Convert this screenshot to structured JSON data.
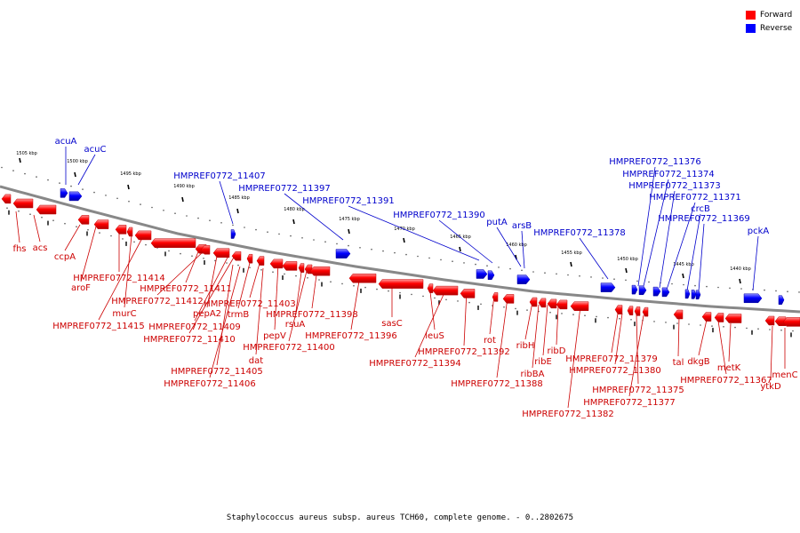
{
  "legend": {
    "forward_label": "Forward",
    "reverse_label": "Reverse",
    "forward_color": "#ff0000",
    "reverse_color": "#0000ff"
  },
  "caption": "Staphylococcus aureus subsp. aureus TCH60, complete genome. - 0..2802675",
  "backbone_color": "#888888",
  "label_forward_color": "#cc0000",
  "label_reverse_color": "#0000cc",
  "ticks": [
    "1505 kbp",
    "1500 kbp",
    "1495 kbp",
    "1490 kbp",
    "1485 kbp",
    "1480 kbp",
    "1475 kbp",
    "1470 kbp",
    "1465 kbp",
    "1460 kbp",
    "1455 kbp",
    "1450 kbp",
    "1445 kbp",
    "1440 kbp"
  ],
  "reverse_genes": [
    "acuA",
    "acuC",
    "HMPREF0772_11407",
    "HMPREF0772_11397",
    "HMPREF0772_11391",
    "HMPREF0772_11390",
    "putA",
    "arsB",
    "HMPREF0772_11378",
    "HMPREF0772_11376",
    "HMPREF0772_11374",
    "HMPREF0772_11373",
    "HMPREF0772_11371",
    "crcB",
    "HMPREF0772_11369",
    "pckA"
  ],
  "forward_genes": [
    "fhs",
    "acs",
    "ccpA",
    "aroF",
    "HMPREF0772_11414",
    "murC",
    "HMPREF0772_11415",
    "HMPREF0772_11411",
    "HMPREF0772_11412",
    "pepA2",
    "HMPREF0772_11409",
    "HMPREF0772_11410",
    "trmB",
    "HMPREF0772_11403",
    "HMPREF0772_11405",
    "HMPREF0772_11406",
    "pepV",
    "dat",
    "rsuA",
    "HMPREF0772_11400",
    "HMPREF0772_11398",
    "HMPREF0772_11396",
    "sasC",
    "leuS",
    "HMPREF0772_11394",
    "HMPREF0772_11392",
    "rot",
    "HMPREF0772_11388",
    "ribH",
    "ribBA",
    "ribE",
    "ribD",
    "HMPREF0772_11382",
    "HMPREF0772_11379",
    "HMPREF0772_11380",
    "HMPREF0772_11375",
    "HMPREF0772_11377",
    "tal",
    "dkgB",
    "HMPREF0772_11367",
    "metK",
    "ytkD",
    "menC"
  ]
}
